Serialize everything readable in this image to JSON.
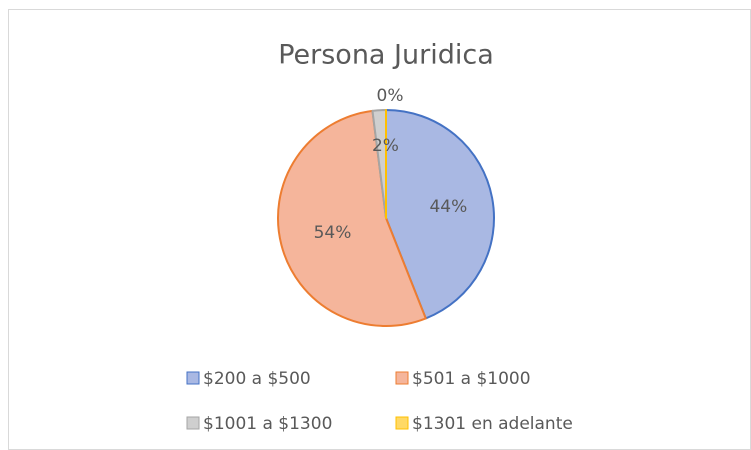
{
  "chart_data": {
    "type": "pie",
    "title": "Persona Juridica",
    "categories": [
      "$200 a $500",
      "$501 a $1000",
      "$1001 a $1300",
      "$1301 en adelante"
    ],
    "values": [
      44,
      54,
      2,
      0
    ],
    "value_labels": [
      "44%",
      "54%",
      "2%",
      "0%"
    ],
    "colors": [
      "#a9b8e3",
      "#f5b59b",
      "#cfcfcf",
      "#ffd966"
    ],
    "edge_colors": [
      "#4472c4",
      "#ed7d31",
      "#a5a5a5",
      "#ffc000"
    ],
    "legend": "bottom"
  }
}
